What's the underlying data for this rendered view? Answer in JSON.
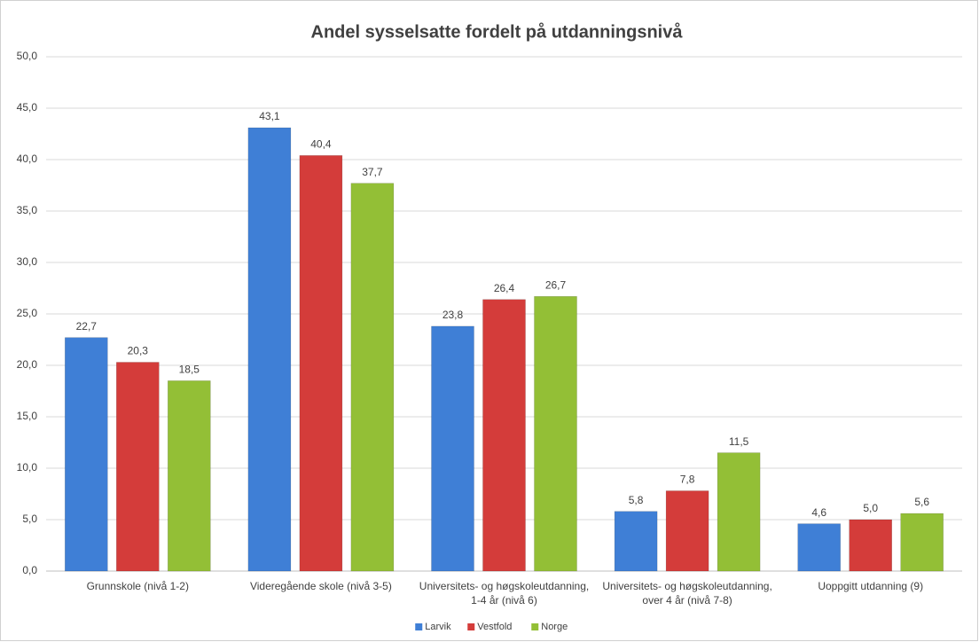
{
  "chart_data": {
    "type": "bar",
    "title": "Andel sysselsatte fordelt på utdanningsnivå",
    "categories": [
      "Grunnskole (nivå 1-2)",
      "Videregående skole (nivå 3-5)",
      "Universitets- og høgskoleutdanning, 1-4 år (nivå 6)",
      "Universitets- og høgskoleutdanning, over 4 år (nivå 7-8)",
      "Uoppgitt utdanning (9)"
    ],
    "series": [
      {
        "name": "Larvik",
        "color": "#3f7fd6",
        "values": [
          22.7,
          43.1,
          23.8,
          5.8,
          4.6
        ],
        "value_labels": [
          "22,7",
          "43,1",
          "23,8",
          "5,8",
          "4,6"
        ]
      },
      {
        "name": "Vestfold",
        "color": "#d43c3a",
        "values": [
          20.3,
          40.4,
          26.4,
          7.8,
          5.0
        ],
        "value_labels": [
          "20,3",
          "40,4",
          "26,4",
          "7,8",
          "5,0"
        ]
      },
      {
        "name": "Norge",
        "color": "#93bf36",
        "values": [
          18.5,
          37.7,
          26.7,
          11.5,
          5.6
        ],
        "value_labels": [
          "18,5",
          "37,7",
          "26,7",
          "11,5",
          "5,6"
        ]
      }
    ],
    "ylim": [
      0,
      50
    ],
    "yticks": [
      {
        "value": 0,
        "label": "0,0"
      },
      {
        "value": 5,
        "label": "5,0"
      },
      {
        "value": 10,
        "label": "10,0"
      },
      {
        "value": 15,
        "label": "15,0"
      },
      {
        "value": 20,
        "label": "20,0"
      },
      {
        "value": 25,
        "label": "25,0"
      },
      {
        "value": 30,
        "label": "30,0"
      },
      {
        "value": 35,
        "label": "35,0"
      },
      {
        "value": 40,
        "label": "40,0"
      },
      {
        "value": 45,
        "label": "45,0"
      },
      {
        "value": 50,
        "label": "50,0"
      }
    ],
    "grid": true,
    "legend": "bottom"
  }
}
